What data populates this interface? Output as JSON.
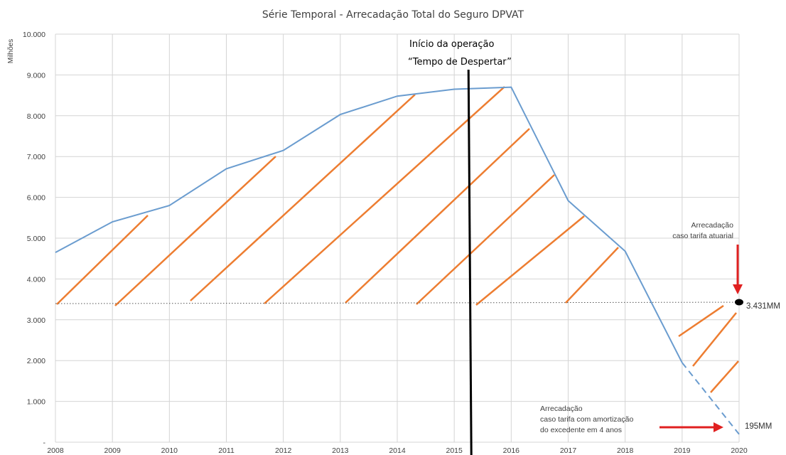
{
  "chart_data": {
    "type": "line",
    "title": "Série Temporal - Arrecadação Total do Seguro DPVAT",
    "ylabel": "Milhões",
    "xlabel": "",
    "x": [
      "2008",
      "2009",
      "2010",
      "2011",
      "2012",
      "2013",
      "2014",
      "2015",
      "2016",
      "2017",
      "2018",
      "2019",
      "2020"
    ],
    "series": [
      {
        "values": [
          4650,
          5400,
          5800,
          6700,
          7150,
          8030,
          8480,
          8650,
          8700,
          5920,
          4680,
          1950,
          195
        ],
        "color": "#6A9CCF",
        "dashed_from": "2019"
      }
    ],
    "ylim": [
      0,
      10000
    ],
    "y_ticks": [
      "-",
      "1.000",
      "2.000",
      "3.000",
      "4.000",
      "5.000",
      "6.000",
      "7.000",
      "8.000",
      "9.000",
      "10.000"
    ],
    "y_tick_values": [
      0,
      1000,
      2000,
      3000,
      4000,
      5000,
      6000,
      7000,
      8000,
      9000,
      10000
    ],
    "grid": true,
    "reference_line": {
      "value": 3431,
      "style": "dotted"
    },
    "hatch_color": "#ED7D31",
    "event_line": {
      "x": "2015.3",
      "color": "#000000"
    },
    "annotations": {
      "operation_line1": "Início da operação",
      "operation_line2": "“Tempo de Despertar”",
      "actuarial_line1": "Arrecadação",
      "actuarial_line2": "caso tarifa atuarial",
      "actuarial_value": "3.431MM",
      "amort_line1": "Arrecadação",
      "amort_line2": "caso tarifa com amortização",
      "amort_line3": "do excedente em 4 anos",
      "amort_value": "195MM"
    },
    "arrow_color": "#E02020"
  }
}
